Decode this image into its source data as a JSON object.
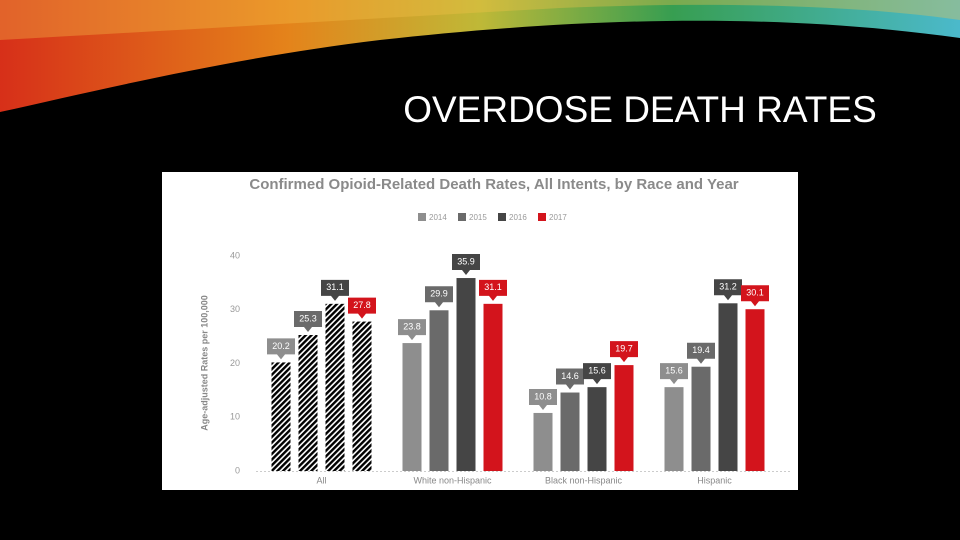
{
  "slide": {
    "title": "OVERDOSE DEATH RATES"
  },
  "chart_data": {
    "type": "bar",
    "title": "Confirmed Opioid-Related Death Rates, All Intents, by Race and Year",
    "y_label": "Age-adjusted Rates per 100,000",
    "categories": [
      "All",
      "White non-Hispanic",
      "Black non-Hispanic",
      "Hispanic"
    ],
    "hatched": [
      true,
      false,
      false,
      false
    ],
    "series": [
      {
        "name": "2014",
        "color": "#8e8e8e",
        "values": [
          20.2,
          23.8,
          10.8,
          15.6
        ]
      },
      {
        "name": "2015",
        "color": "#6a6a6a",
        "values": [
          25.3,
          29.9,
          14.6,
          19.4
        ]
      },
      {
        "name": "2016",
        "color": "#454545",
        "values": [
          31.1,
          35.9,
          15.6,
          31.2
        ]
      },
      {
        "name": "2017",
        "color": "#d3141c",
        "values": [
          27.8,
          31.1,
          19.7,
          30.1
        ]
      }
    ],
    "ylim": [
      0,
      40
    ],
    "yticks": [
      0,
      10,
      20,
      30,
      40
    ],
    "grid": false,
    "legend": "top"
  }
}
